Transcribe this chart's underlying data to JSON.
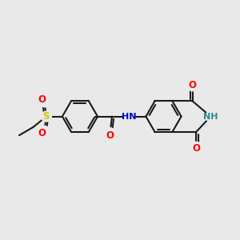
{
  "bg_color": "#e9e9e9",
  "bond_color": "#1a1a1a",
  "bond_width": 1.5,
  "atom_colors": {
    "O": "#ff0000",
    "N_blue": "#0000cc",
    "N_teal": "#2e8b8b",
    "S": "#cccc00",
    "H_teal": "#2e8b8b"
  },
  "font_size": 8.5
}
